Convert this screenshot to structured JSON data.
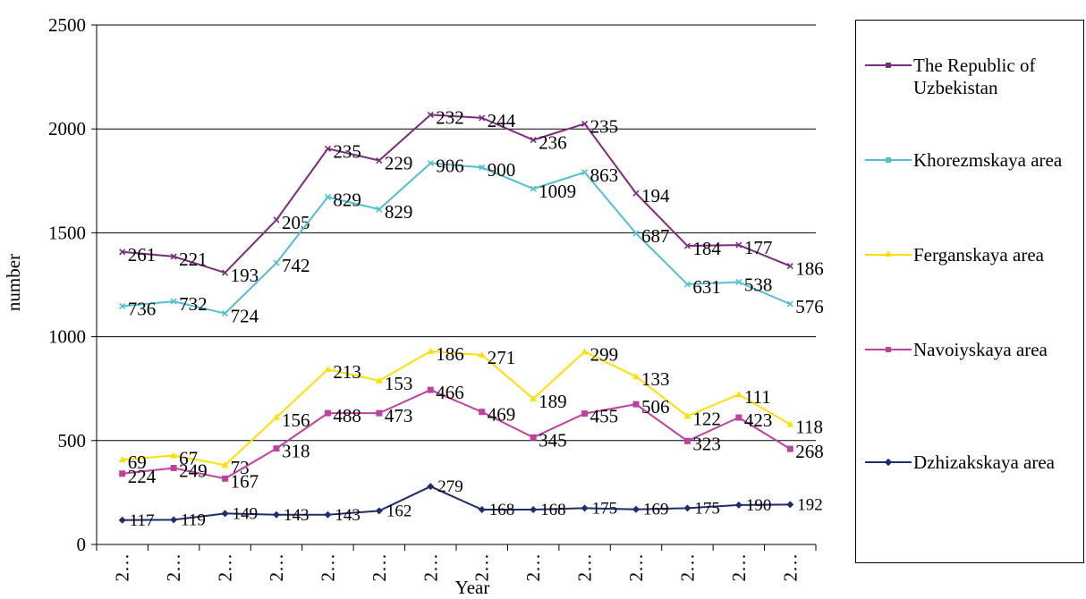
{
  "chart_data": {
    "type": "line",
    "ylabel": "number",
    "xlabel": "Year",
    "ylim": [
      0,
      2500
    ],
    "yticks": [
      "0",
      "500",
      "1000",
      "1500",
      "2000",
      "2500"
    ],
    "grid": true,
    "legend_position": "right",
    "categories": [
      "2…",
      "2…",
      "2…",
      "2…",
      "2…",
      "2…",
      "2…",
      "2…",
      "2…",
      "2…",
      "2…",
      "2…",
      "2…",
      "2…"
    ],
    "series": [
      {
        "name": "The Republic of Uzbekistan",
        "color": "#7b2c7d",
        "marker": "x",
        "values": [
          1408,
          1386,
          1308,
          1562,
          1905,
          1848,
          2068,
          2053,
          1947,
          2025,
          1690,
          1437,
          1441,
          1340
        ],
        "labels": [
          "261",
          "221",
          "193",
          "205",
          "235",
          "229",
          "232",
          "244",
          "236",
          "235",
          "194",
          "184",
          "177",
          "186"
        ]
      },
      {
        "name": "Khorezmskaya area",
        "color": "#4fc0d0",
        "marker": "x",
        "values": [
          1147,
          1170,
          1112,
          1355,
          1672,
          1613,
          1835,
          1815,
          1712,
          1791,
          1497,
          1252,
          1263,
          1157
        ],
        "labels": [
          "736",
          "732",
          "724",
          "742",
          "829",
          "829",
          "906",
          "900",
          "1009",
          "863",
          "687",
          "631",
          "538",
          "576"
        ]
      },
      {
        "name": "Ferganskaya area",
        "color": "#ffe000",
        "marker": "triangle",
        "values": [
          408,
          428,
          382,
          612,
          843,
          788,
          930,
          912,
          702,
          928,
          808,
          618,
          722,
          578
        ],
        "labels": [
          "69",
          "67",
          "73",
          "156",
          "213",
          "153",
          "186",
          "271",
          "189",
          "299",
          "133",
          "122",
          "111",
          "118"
        ]
      },
      {
        "name": "Navoiyskaya area",
        "color": "#c040a0",
        "marker": "square",
        "values": [
          341,
          368,
          317,
          462,
          632,
          632,
          744,
          638,
          515,
          630,
          675,
          498,
          611,
          460
        ],
        "labels": [
          "224",
          "249",
          "167",
          "318",
          "488",
          "473",
          "466",
          "469",
          "345",
          "455",
          "506",
          "323",
          "423",
          "268"
        ]
      },
      {
        "name": "Dzhizakskaya area",
        "color": "#1f2d6e",
        "marker": "diamond",
        "values": [
          117,
          119,
          149,
          143,
          143,
          162,
          279,
          168,
          168,
          175,
          169,
          175,
          190,
          192
        ],
        "labels": [
          "117",
          "119",
          "149",
          "143",
          "143",
          "162",
          "279",
          "168",
          "168",
          "175",
          "169",
          "175",
          "190",
          "192"
        ]
      }
    ]
  },
  "legend": {
    "items": [
      {
        "label": "The Republic of Uzbekistan"
      },
      {
        "label": "Khorezmskaya area"
      },
      {
        "label": "Ferganskaya area"
      },
      {
        "label": "Navoiyskaya area"
      },
      {
        "label": "Dzhizakskaya area"
      }
    ]
  }
}
